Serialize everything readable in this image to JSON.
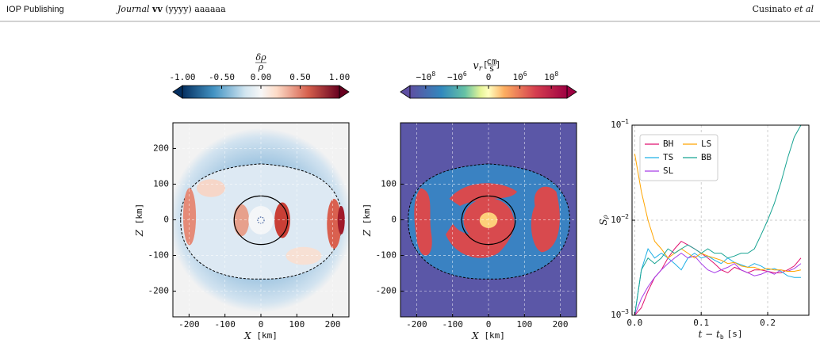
{
  "header": {
    "publisher": "IOP Publishing",
    "journal": "Journal",
    "volume": "vv",
    "year": "(yyyy)",
    "article": "aaaaaa",
    "author": "Cusinato",
    "etal": "et al"
  },
  "maps": [
    {
      "colorbar": {
        "label": {
          "numerator": "δρ",
          "denominator": "ρ"
        },
        "scale": "linear",
        "clim": [
          -1,
          1
        ],
        "ticks": [
          {
            "value": -1,
            "label": "-1.00"
          },
          {
            "value": -0.5,
            "label": "-0.50"
          },
          {
            "value": 0,
            "label": "0.00"
          },
          {
            "value": 0.5,
            "label": "0.50"
          },
          {
            "value": 1,
            "label": "1.00"
          }
        ]
      },
      "xlabel": {
        "symbol": "X",
        "unit": "[km]"
      },
      "ylabel": {
        "symbol": "Z",
        "unit": "[km]"
      },
      "xlim": [
        -245,
        245
      ],
      "ylim": [
        -272,
        272
      ],
      "xticks": [
        -200,
        -100,
        0,
        100,
        200
      ],
      "yticks": [
        -200,
        -100,
        0,
        100,
        200
      ],
      "grid": true
    },
    {
      "colorbar": {
        "label": {
          "symbol": "v",
          "subscript": "r",
          "open": "[",
          "numerator": "cm",
          "denominator": "s",
          "close": "]"
        },
        "scale": "symlog",
        "linthresh": 100000,
        "clim": [
          -1000000000,
          1000000000
        ],
        "ticks": [
          {
            "value": -100000000,
            "label": "−10",
            "exponent": "8"
          },
          {
            "value": -1000000,
            "label": "−10",
            "exponent": "6"
          },
          0,
          {
            "value": 1000000,
            "label": "10",
            "exponent": "6"
          },
          {
            "value": 100000000,
            "label": "10",
            "exponent": "8"
          }
        ]
      },
      "xlabel": {
        "symbol": "X",
        "unit": "[km]"
      },
      "ylabel": {
        "symbol": "Z",
        "unit": "[km]"
      },
      "xlim": [
        -245,
        245
      ],
      "ylim": [
        -272,
        272
      ],
      "xticks": [
        -200,
        -100,
        0,
        100,
        200
      ],
      "yticks": [
        -200,
        -100,
        0,
        100
      ],
      "grid": true
    }
  ],
  "chart_data": {
    "type": "line",
    "xlabel": {
      "symbol": "t − t",
      "subscript": "b",
      "unit": "[s]"
    },
    "ylabel": {
      "symbol": "S",
      "subscript": "ρ"
    },
    "x": [
      0,
      0.01,
      0.02,
      0.03,
      0.04,
      0.05,
      0.06,
      0.07,
      0.08,
      0.09,
      0.1,
      0.11,
      0.12,
      0.13,
      0.14,
      0.15,
      0.16,
      0.17,
      0.18,
      0.19,
      0.2,
      0.21,
      0.22,
      0.23,
      0.24,
      0.25
    ],
    "xlim": [
      -0.004,
      0.262
    ],
    "ylim": [
      0.001,
      0.1
    ],
    "log_y": true,
    "grid": true,
    "legend": "upper left",
    "xticks": [
      {
        "value": 0,
        "label": "0.0"
      },
      0.1,
      0.2
    ],
    "yticks": [
      {
        "value": 0.001,
        "label": "10",
        "exponent": "−3"
      },
      {
        "value": 0.01,
        "label": "10",
        "exponent": "−2"
      },
      {
        "value": 0.1,
        "label": "10",
        "exponent": "−1"
      }
    ],
    "series": [
      {
        "name": "BH",
        "color": "#e0116f",
        "values": [
          0.001,
          0.0012,
          0.0018,
          0.0025,
          0.003,
          0.004,
          0.005,
          0.006,
          0.0055,
          0.005,
          0.0045,
          0.004,
          0.0035,
          0.003,
          0.0028,
          0.0032,
          0.003,
          0.0028,
          0.003,
          0.003,
          0.0029,
          0.0028,
          0.0028,
          0.003,
          0.0033,
          0.004
        ]
      },
      {
        "name": "TS",
        "color": "#1fb0e6",
        "values": [
          0.001,
          0.003,
          0.005,
          0.004,
          0.0045,
          0.004,
          0.0035,
          0.003,
          0.004,
          0.0045,
          0.004,
          0.0042,
          0.0038,
          0.0035,
          0.004,
          0.0036,
          0.0034,
          0.0032,
          0.0035,
          0.0033,
          0.003,
          0.0031,
          0.0029,
          0.0026,
          0.0025,
          0.0025
        ]
      },
      {
        "name": "SL",
        "color": "#a83ee8",
        "values": [
          0.001,
          0.0015,
          0.002,
          0.0025,
          0.003,
          0.0035,
          0.004,
          0.0045,
          0.004,
          0.0042,
          0.0035,
          0.003,
          0.0028,
          0.003,
          0.0032,
          0.0035,
          0.003,
          0.0028,
          0.0026,
          0.0027,
          0.0029,
          0.0027,
          0.003,
          0.0029,
          0.0031,
          0.0035
        ]
      },
      {
        "name": "LS",
        "color": "#ffa500",
        "values": [
          0.05,
          0.02,
          0.01,
          0.006,
          0.005,
          0.004,
          0.0045,
          0.005,
          0.0045,
          0.004,
          0.0045,
          0.0042,
          0.004,
          0.0038,
          0.0035,
          0.0036,
          0.0033,
          0.0032,
          0.0032,
          0.003,
          0.0031,
          0.003,
          0.003,
          0.0029,
          0.0029,
          0.003
        ]
      },
      {
        "name": "BB",
        "color": "#17a392",
        "values": [
          0.001,
          0.003,
          0.004,
          0.0035,
          0.004,
          0.005,
          0.0045,
          0.005,
          0.0055,
          0.005,
          0.0045,
          0.005,
          0.0045,
          0.0045,
          0.004,
          0.0042,
          0.0045,
          0.0045,
          0.005,
          0.007,
          0.01,
          0.015,
          0.025,
          0.045,
          0.075,
          0.1
        ]
      }
    ]
  }
}
